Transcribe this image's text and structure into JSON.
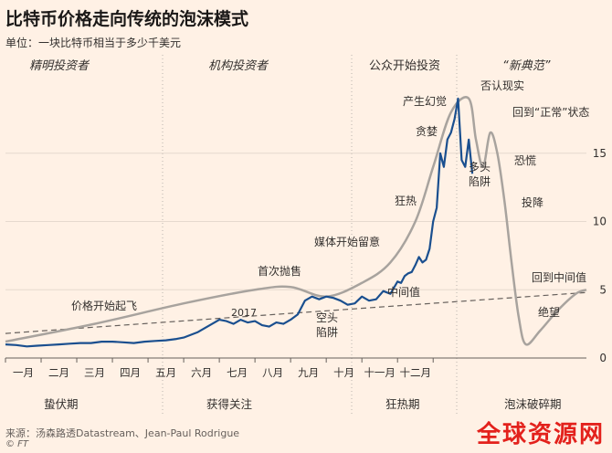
{
  "title": "比特币价格走向传统的泡沫模式",
  "subtitle": "单位：一块比特币相当于多少千美元",
  "source": "来源：汤森路透Datastream、Jean-Paul Rodrigue",
  "credit": "© FT",
  "watermark": "全球资源网",
  "colors": {
    "background": "#fff1e5",
    "price_line": "#1a4f8f",
    "bubble_curve": "#a8a39e",
    "trend_line": "#66605c"
  },
  "chart_data": {
    "type": "line",
    "ylim": [
      0,
      20
    ],
    "yticks": [
      0,
      5,
      10,
      15
    ],
    "year_label": "2017",
    "months": [
      "一月",
      "二月",
      "三月",
      "四月",
      "五月",
      "六月",
      "七月",
      "八月",
      "九月",
      "十月",
      "十一月",
      "十二月"
    ],
    "phases": [
      "精明投资者",
      "机构投资者",
      "公众开始投资",
      "“新典范”"
    ],
    "stages": [
      "蛰伏期",
      "获得关注",
      "狂热期",
      "泡沫破碎期"
    ],
    "price_series": {
      "x": [
        0,
        0.3,
        0.6,
        0.9,
        1.2,
        1.5,
        1.8,
        2.1,
        2.4,
        2.7,
        3,
        3.3,
        3.6,
        3.9,
        4.2,
        4.5,
        4.8,
        5,
        5.2,
        5.4,
        5.6,
        5.8,
        6,
        6.2,
        6.4,
        6.6,
        6.8,
        7,
        7.2,
        7.4,
        7.6,
        7.8,
        8,
        8.2,
        8.4,
        8.6,
        8.8,
        9,
        9.2,
        9.4,
        9.6,
        9.8,
        10,
        10.2,
        10.4,
        10.6,
        10.8,
        11,
        11.1,
        11.2,
        11.3,
        11.4,
        11.5,
        11.6,
        11.7,
        11.8,
        11.9,
        12,
        12.1,
        12.2,
        12.3,
        12.4,
        12.5,
        12.6,
        12.7,
        12.8,
        12.9,
        13,
        13.1
      ],
      "y": [
        1.0,
        0.95,
        0.85,
        0.9,
        0.95,
        1.0,
        1.05,
        1.1,
        1.1,
        1.2,
        1.2,
        1.15,
        1.1,
        1.2,
        1.25,
        1.3,
        1.4,
        1.5,
        1.7,
        1.9,
        2.2,
        2.5,
        2.8,
        2.7,
        2.5,
        2.8,
        2.6,
        2.7,
        2.4,
        2.3,
        2.6,
        2.5,
        2.8,
        3.2,
        4.2,
        4.5,
        4.3,
        4.5,
        4.4,
        4.2,
        3.9,
        4.0,
        4.5,
        4.2,
        4.3,
        4.9,
        4.7,
        5.6,
        5.5,
        6.0,
        6.2,
        6.3,
        6.8,
        7.4,
        7.0,
        7.2,
        8.0,
        10.0,
        11.0,
        15.0,
        14.0,
        16.0,
        16.5,
        17.5,
        19.0,
        14.5,
        14.0,
        16.0,
        13.5
      ]
    },
    "bubble_curve": {
      "x": [
        0,
        2.5,
        5,
        7,
        8,
        9,
        10,
        10.8,
        11.5,
        12,
        12.5,
        13,
        13.2,
        13.4,
        13.6,
        13.8,
        14,
        14.2,
        14.4,
        14.6,
        15,
        15.5,
        16,
        16.3
      ],
      "y": [
        1.2,
        2.5,
        4,
        5,
        5.2,
        4.5,
        5.5,
        7,
        10,
        14,
        18,
        19,
        16,
        14,
        16.5,
        15,
        11.5,
        7,
        3,
        1,
        2,
        3.5,
        4.7,
        5
      ]
    },
    "trend_line": {
      "x": [
        0,
        16.3
      ],
      "y": [
        1.8,
        4.8
      ]
    },
    "annotations": [
      "价格开始起飞",
      "首次抛售",
      "媒体开始留意",
      "狂热",
      "贪婪",
      "产生幻觉",
      "否认现实",
      "回到“正常”状态",
      "恐慌",
      "投降",
      "回到中间值",
      "绝望",
      "中间值",
      "空头陷阱",
      "多头陷阱"
    ]
  }
}
